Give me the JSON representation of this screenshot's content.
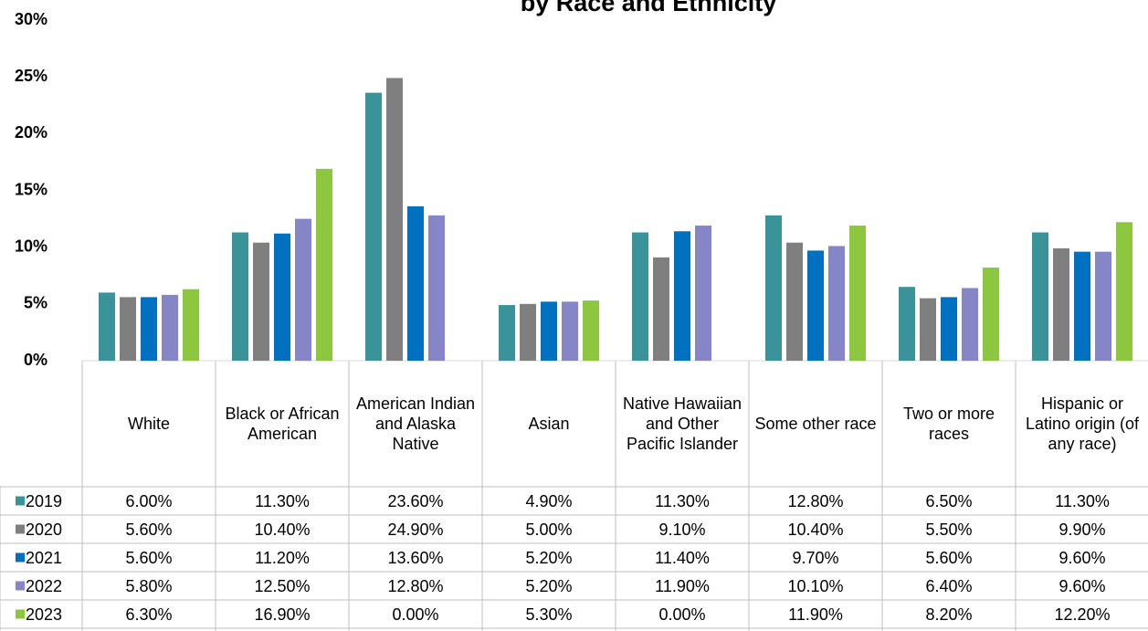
{
  "chart_data": {
    "type": "bar",
    "title": "by Race and Ethnicity",
    "categories": [
      "White",
      "Black or African American",
      "American Indian and Alaska Native",
      "Asian",
      "Native Hawaiian and Other Pacific Islander",
      "Some other race",
      "Two or more races",
      "Hispanic or Latino origin (of any race)"
    ],
    "series": [
      {
        "name": "2019",
        "color": "#3a9399",
        "values": [
          6.0,
          11.3,
          23.6,
          4.9,
          11.3,
          12.8,
          6.5,
          11.3
        ],
        "value_labels": [
          "6.00%",
          "11.30%",
          "23.60%",
          "4.90%",
          "11.30%",
          "12.80%",
          "6.50%",
          "11.30%"
        ]
      },
      {
        "name": "2020",
        "color": "#7f7f7f",
        "values": [
          5.6,
          10.4,
          24.9,
          5.0,
          9.1,
          10.4,
          5.5,
          9.9
        ],
        "value_labels": [
          "5.60%",
          "10.40%",
          "24.90%",
          "5.00%",
          "9.10%",
          "10.40%",
          "5.50%",
          "9.90%"
        ]
      },
      {
        "name": "2021",
        "color": "#0070c0",
        "values": [
          5.6,
          11.2,
          13.6,
          5.2,
          11.4,
          9.7,
          5.6,
          9.6
        ],
        "value_labels": [
          "5.60%",
          "11.20%",
          "13.60%",
          "5.20%",
          "11.40%",
          "9.70%",
          "5.60%",
          "9.60%"
        ]
      },
      {
        "name": "2022",
        "color": "#8585c8",
        "values": [
          5.8,
          12.5,
          12.8,
          5.2,
          11.9,
          10.1,
          6.4,
          9.6
        ],
        "value_labels": [
          "5.80%",
          "12.50%",
          "12.80%",
          "5.20%",
          "11.90%",
          "10.10%",
          "6.40%",
          "9.60%"
        ]
      },
      {
        "name": "2023",
        "color": "#8dc63f",
        "values": [
          6.3,
          16.9,
          0.0,
          5.3,
          0.0,
          11.9,
          8.2,
          12.2
        ],
        "value_labels": [
          "6.30%",
          "16.90%",
          "0.00%",
          "5.30%",
          "0.00%",
          "11.90%",
          "8.20%",
          "12.20%"
        ]
      }
    ],
    "ylim": [
      0,
      30
    ],
    "yticks": [
      {
        "value": 0,
        "label": "0%"
      },
      {
        "value": 5,
        "label": "5%"
      },
      {
        "value": 10,
        "label": "10%"
      },
      {
        "value": 15,
        "label": "15%"
      },
      {
        "value": 20,
        "label": "20%"
      },
      {
        "value": 25,
        "label": "25%"
      },
      {
        "value": 30,
        "label": "30%"
      }
    ]
  }
}
